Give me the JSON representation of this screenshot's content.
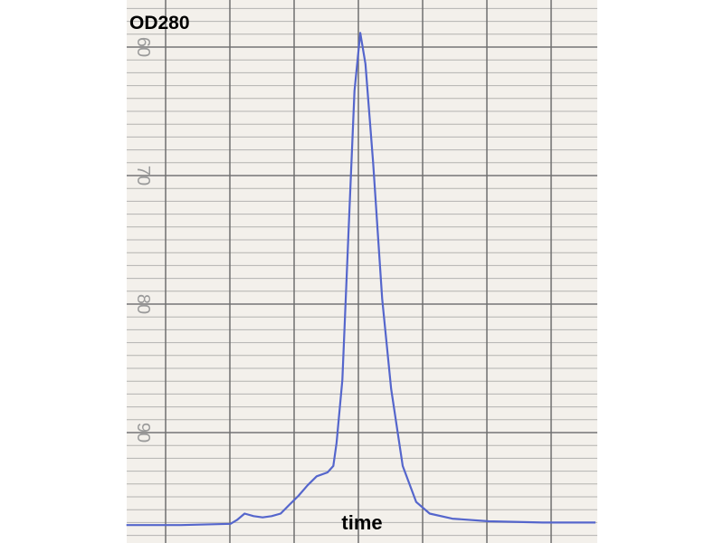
{
  "chart_data": {
    "type": "line",
    "title": "OD280",
    "xlabel": "time",
    "ylabel": "",
    "y_ticks": [
      "60",
      "70",
      "80",
      "90"
    ],
    "ylim": [
      97.9,
      56.3
    ],
    "y_inverted": true,
    "grid": true,
    "line_color": "#5566cc",
    "paper_color": "#f3f0eb",
    "grid_color": "#8a8a8a",
    "series": [
      {
        "x": [
          -0.61,
          0.24,
          1.01,
          1.11,
          1.23,
          1.37,
          1.51,
          1.65,
          1.79,
          1.93,
          2.07,
          2.21,
          2.35,
          2.52,
          2.61,
          2.66,
          2.75,
          2.85,
          2.94,
          3.03,
          3.11,
          3.23,
          3.37,
          3.51,
          3.69,
          3.9,
          4.11,
          4.46,
          5.03,
          5.87,
          6.69
        ],
        "y": [
          97.2,
          97.2,
          97.1,
          96.8,
          96.3,
          96.5,
          96.6,
          96.5,
          96.3,
          95.6,
          94.9,
          94.1,
          93.4,
          93.1,
          92.6,
          90.8,
          85.9,
          73.9,
          63.4,
          58.9,
          61.3,
          69.0,
          79.6,
          86.6,
          92.6,
          95.4,
          96.3,
          96.7,
          96.9,
          97.0,
          97.0
        ]
      }
    ]
  }
}
